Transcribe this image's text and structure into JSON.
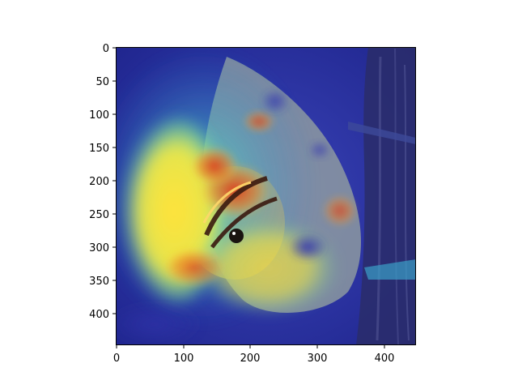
{
  "figure": {
    "description": "Grad-CAM style heatmap overlaid on a photo of a small bird",
    "colormap": "jet",
    "colors": {
      "background": "#ffffff",
      "heat_low": "#1a1f9c",
      "heat_mid": "#2fd4c6",
      "heat_high_yellow": "#ffe23a",
      "heat_peak": "#e23518",
      "bird_body": "#9aa7a0",
      "bark": "#2a2d6a"
    }
  },
  "axes": {
    "x_ticks": [
      "0",
      "100",
      "200",
      "300",
      "400"
    ],
    "y_ticks": [
      "0",
      "50",
      "100",
      "150",
      "200",
      "250",
      "300",
      "350",
      "400"
    ],
    "x_range": [
      0,
      448
    ],
    "y_range": [
      0,
      448
    ]
  }
}
